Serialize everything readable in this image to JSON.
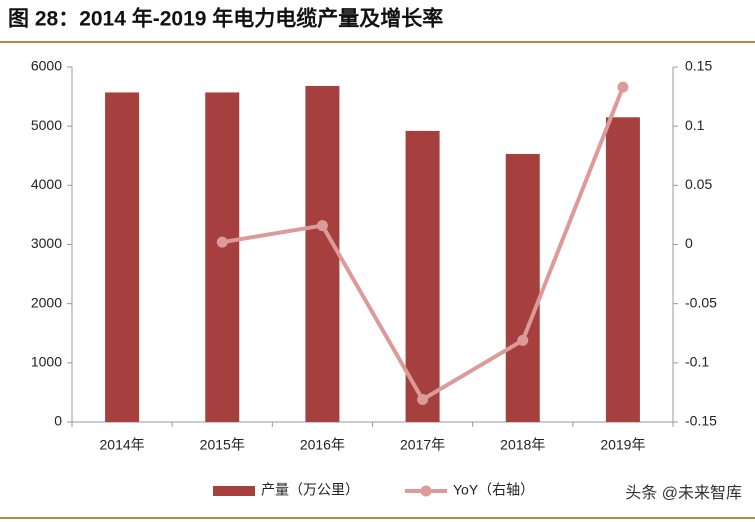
{
  "chart_data": {
    "type": "bar-line",
    "title": "图 28：2014 年-2019 年电力电缆产量及增长率",
    "categories": [
      "2014年",
      "2015年",
      "2016年",
      "2017年",
      "2018年",
      "2019年"
    ],
    "series": [
      {
        "name": "产量（万公里）",
        "color": "#a5403f",
        "type": "bar",
        "values": [
          5570,
          5570,
          5680,
          4920,
          4530,
          5150
        ]
      },
      {
        "name": "YoY（右轴）",
        "color": "#dc9a98",
        "type": "line",
        "axis": "y2",
        "values": [
          null,
          0.002,
          0.016,
          -0.131,
          -0.081,
          0.133
        ]
      }
    ],
    "ylim": [
      0,
      6000
    ],
    "yticks": [
      0,
      1000,
      2000,
      3000,
      4000,
      5000,
      6000
    ],
    "y2lim": [
      -0.15,
      0.15
    ],
    "y2ticks": [
      -0.15,
      -0.1,
      -0.05,
      0,
      0.05,
      0.1,
      0.15
    ],
    "watermark": "头条 @未来智库"
  }
}
